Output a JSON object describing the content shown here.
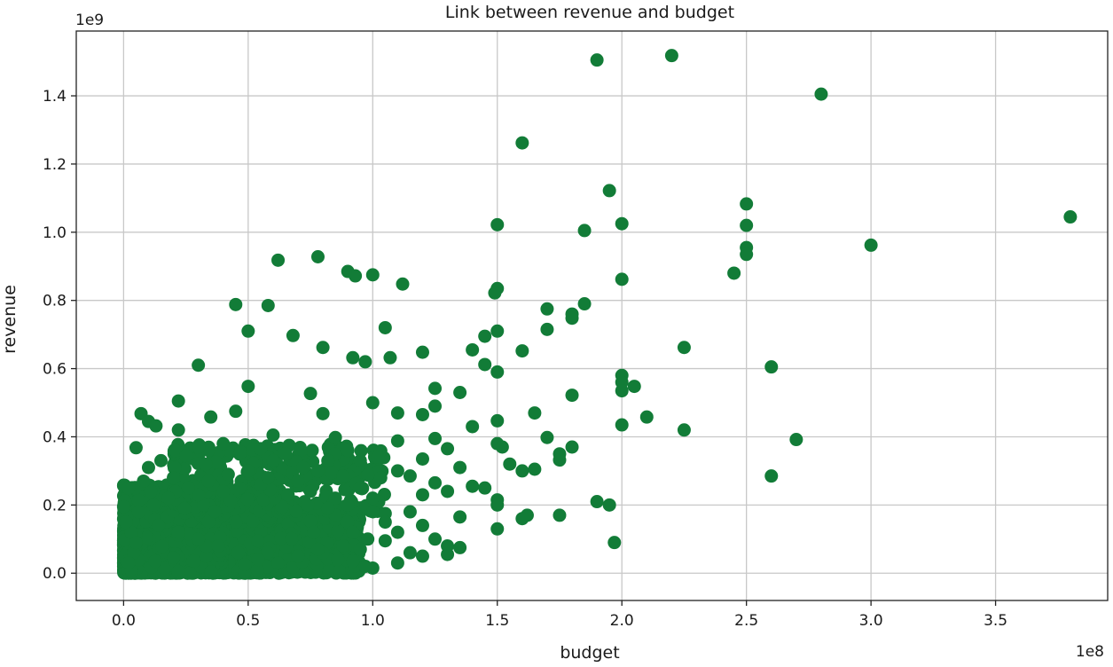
{
  "chart_data": {
    "type": "scatter",
    "title": "Link between revenue and budget",
    "xlabel": "budget",
    "ylabel": "revenue",
    "x_offset_text": "1e8",
    "y_offset_text": "1e9",
    "x_scale": 100000000,
    "y_scale": 1000000000,
    "xlim": [
      -0.19,
      3.95
    ],
    "ylim": [
      -0.08,
      1.59
    ],
    "x_ticks": [
      0.0,
      0.5,
      1.0,
      1.5,
      2.0,
      2.5,
      3.0,
      3.5
    ],
    "x_tick_labels": [
      "0.0",
      "0.5",
      "1.0",
      "1.5",
      "2.0",
      "2.5",
      "3.0",
      "3.5"
    ],
    "y_ticks": [
      0.0,
      0.2,
      0.4,
      0.6,
      0.8,
      1.0,
      1.2,
      1.4
    ],
    "y_tick_labels": [
      "0.0",
      "0.2",
      "0.4",
      "0.6",
      "0.8",
      "1.0",
      "1.2",
      "1.4"
    ],
    "grid": true,
    "marker_color": "#127c37",
    "series": [
      {
        "points": [
          [
            1.9,
            1.505
          ],
          [
            2.2,
            1.518
          ],
          [
            2.8,
            1.405
          ],
          [
            1.6,
            1.262
          ],
          [
            1.95,
            1.122
          ],
          [
            2.5,
            1.083
          ],
          [
            3.8,
            1.045
          ],
          [
            1.5,
            1.022
          ],
          [
            2.0,
            1.025
          ],
          [
            1.85,
            1.005
          ],
          [
            2.5,
            1.02
          ],
          [
            3.0,
            0.962
          ],
          [
            2.5,
            0.955
          ],
          [
            2.5,
            0.935
          ],
          [
            0.78,
            0.928
          ],
          [
            0.62,
            0.918
          ],
          [
            0.9,
            0.885
          ],
          [
            0.93,
            0.872
          ],
          [
            1.0,
            0.875
          ],
          [
            1.12,
            0.848
          ],
          [
            2.45,
            0.88
          ],
          [
            2.0,
            0.862
          ],
          [
            1.5,
            0.835
          ],
          [
            1.49,
            0.822
          ],
          [
            0.45,
            0.788
          ],
          [
            0.58,
            0.785
          ],
          [
            1.85,
            0.79
          ],
          [
            1.8,
            0.76
          ],
          [
            1.8,
            0.748
          ],
          [
            1.7,
            0.775
          ],
          [
            0.5,
            0.71
          ],
          [
            1.05,
            0.72
          ],
          [
            1.45,
            0.695
          ],
          [
            1.5,
            0.71
          ],
          [
            1.7,
            0.715
          ],
          [
            0.68,
            0.697
          ],
          [
            0.8,
            0.662
          ],
          [
            1.4,
            0.655
          ],
          [
            1.6,
            0.652
          ],
          [
            2.25,
            0.662
          ],
          [
            0.92,
            0.632
          ],
          [
            0.97,
            0.62
          ],
          [
            1.07,
            0.632
          ],
          [
            1.2,
            0.648
          ],
          [
            0.3,
            0.61
          ],
          [
            1.45,
            0.612
          ],
          [
            1.5,
            0.59
          ],
          [
            2.6,
            0.605
          ],
          [
            2.0,
            0.58
          ],
          [
            2.0,
            0.56
          ],
          [
            2.0,
            0.535
          ],
          [
            2.05,
            0.548
          ],
          [
            1.8,
            0.522
          ],
          [
            1.25,
            0.542
          ],
          [
            1.35,
            0.53
          ],
          [
            0.5,
            0.548
          ],
          [
            0.75,
            0.527
          ],
          [
            0.22,
            0.505
          ],
          [
            0.45,
            0.475
          ],
          [
            0.8,
            0.468
          ],
          [
            1.0,
            0.5
          ],
          [
            1.1,
            0.47
          ],
          [
            1.2,
            0.465
          ],
          [
            1.25,
            0.49
          ],
          [
            1.65,
            0.47
          ],
          [
            0.35,
            0.458
          ],
          [
            0.07,
            0.468
          ],
          [
            0.1,
            0.445
          ],
          [
            1.5,
            0.447
          ],
          [
            2.1,
            0.458
          ],
          [
            2.0,
            0.435
          ],
          [
            1.4,
            0.43
          ],
          [
            0.13,
            0.432
          ],
          [
            0.22,
            0.42
          ],
          [
            2.25,
            0.42
          ],
          [
            1.7,
            0.398
          ],
          [
            2.7,
            0.392
          ],
          [
            0.6,
            0.405
          ],
          [
            0.85,
            0.398
          ],
          [
            1.1,
            0.388
          ],
          [
            1.25,
            0.395
          ],
          [
            1.5,
            0.38
          ],
          [
            1.52,
            0.37
          ],
          [
            1.8,
            0.37
          ],
          [
            0.05,
            0.368
          ],
          [
            0.3,
            0.37
          ],
          [
            0.55,
            0.365
          ],
          [
            0.9,
            0.36
          ],
          [
            1.3,
            0.365
          ],
          [
            1.75,
            0.35
          ],
          [
            1.2,
            0.335
          ],
          [
            1.75,
            0.332
          ],
          [
            1.55,
            0.32
          ],
          [
            1.6,
            0.3
          ],
          [
            1.65,
            0.305
          ],
          [
            1.35,
            0.31
          ],
          [
            1.1,
            0.3
          ],
          [
            1.15,
            0.285
          ],
          [
            2.6,
            0.285
          ],
          [
            1.25,
            0.265
          ],
          [
            1.4,
            0.255
          ],
          [
            1.45,
            0.25
          ],
          [
            1.3,
            0.24
          ],
          [
            1.2,
            0.23
          ],
          [
            1.5,
            0.215
          ],
          [
            1.5,
            0.2
          ],
          [
            1.9,
            0.21
          ],
          [
            1.95,
            0.2
          ],
          [
            1.62,
            0.17
          ],
          [
            1.6,
            0.16
          ],
          [
            1.75,
            0.17
          ],
          [
            1.35,
            0.165
          ],
          [
            1.05,
            0.175
          ],
          [
            1.15,
            0.18
          ],
          [
            1.5,
            0.13
          ],
          [
            1.25,
            0.1
          ],
          [
            1.3,
            0.08
          ],
          [
            1.35,
            0.075
          ],
          [
            1.3,
            0.055
          ],
          [
            1.2,
            0.05
          ],
          [
            1.97,
            0.09
          ],
          [
            1.1,
            0.03
          ],
          [
            1.05,
            0.095
          ],
          [
            1.0,
            0.015
          ],
          [
            0.97,
            0.02
          ],
          [
            1.2,
            0.14
          ],
          [
            1.1,
            0.12
          ],
          [
            0.95,
            0.25
          ],
          [
            1.0,
            0.22
          ],
          [
            0.9,
            0.2
          ],
          [
            0.85,
            0.22
          ],
          [
            0.02,
            0.25
          ],
          [
            0.0,
            0.195
          ],
          [
            0.65,
            0.35
          ],
          [
            0.72,
            0.31
          ],
          [
            0.78,
            0.3
          ],
          [
            0.82,
            0.33
          ],
          [
            0.88,
            0.285
          ],
          [
            0.95,
            0.33
          ],
          [
            1.02,
            0.34
          ],
          [
            0.4,
            0.38
          ],
          [
            0.47,
            0.355
          ],
          [
            0.25,
            0.345
          ],
          [
            0.15,
            0.33
          ],
          [
            0.1,
            0.31
          ],
          [
            0.33,
            0.32
          ],
          [
            0.6,
            0.33
          ],
          [
            0.7,
            0.27
          ],
          [
            0.2,
            0.28
          ],
          [
            0.08,
            0.27
          ],
          [
            0.55,
            0.26
          ],
          [
            0.4,
            0.24
          ],
          [
            0.3,
            0.23
          ],
          [
            0.75,
            0.24
          ],
          [
            0.85,
            0.17
          ],
          [
            0.9,
            0.15
          ],
          [
            0.92,
            0.12
          ],
          [
            0.98,
            0.1
          ],
          [
            0.88,
            0.08
          ],
          [
            0.8,
            0.06
          ],
          [
            0.95,
            0.07
          ],
          [
            1.05,
            0.15
          ],
          [
            0.03,
            0.12
          ],
          [
            0.04,
            0.06
          ],
          [
            0.02,
            0.03
          ],
          [
            0.05,
            0.09
          ],
          [
            0.01,
            0.15
          ],
          [
            0.06,
            0.18
          ],
          [
            0.12,
            0.2
          ],
          [
            0.18,
            0.22
          ],
          [
            0.26,
            0.25
          ],
          [
            0.34,
            0.27
          ],
          [
            0.42,
            0.29
          ],
          [
            0.5,
            0.3
          ],
          [
            0.58,
            0.28
          ],
          [
            0.66,
            0.23
          ],
          [
            0.74,
            0.2
          ],
          [
            0.82,
            0.19
          ],
          [
            0.14,
            0.14
          ],
          [
            0.22,
            0.12
          ],
          [
            0.3,
            0.1
          ],
          [
            0.38,
            0.08
          ],
          [
            0.46,
            0.06
          ],
          [
            0.54,
            0.04
          ],
          [
            0.62,
            0.03
          ],
          [
            0.7,
            0.05
          ],
          [
            0.78,
            0.07
          ],
          [
            0.86,
            0.04
          ],
          [
            0.92,
            0.035
          ],
          [
            1.15,
            0.06
          ]
        ]
      }
    ],
    "dense_clusters": [
      {
        "x_range": [
          0.0,
          0.95
        ],
        "y_range": [
          0.0,
          0.2
        ],
        "density": 2800
      },
      {
        "x_range": [
          0.0,
          0.4
        ],
        "y_range": [
          0.0,
          0.12
        ],
        "density": 1200
      },
      {
        "x_range": [
          0.0,
          0.6
        ],
        "y_range": [
          0.15,
          0.26
        ],
        "density": 420
      },
      {
        "x_range": [
          0.2,
          1.05
        ],
        "y_range": [
          0.18,
          0.38
        ],
        "density": 330
      }
    ]
  }
}
